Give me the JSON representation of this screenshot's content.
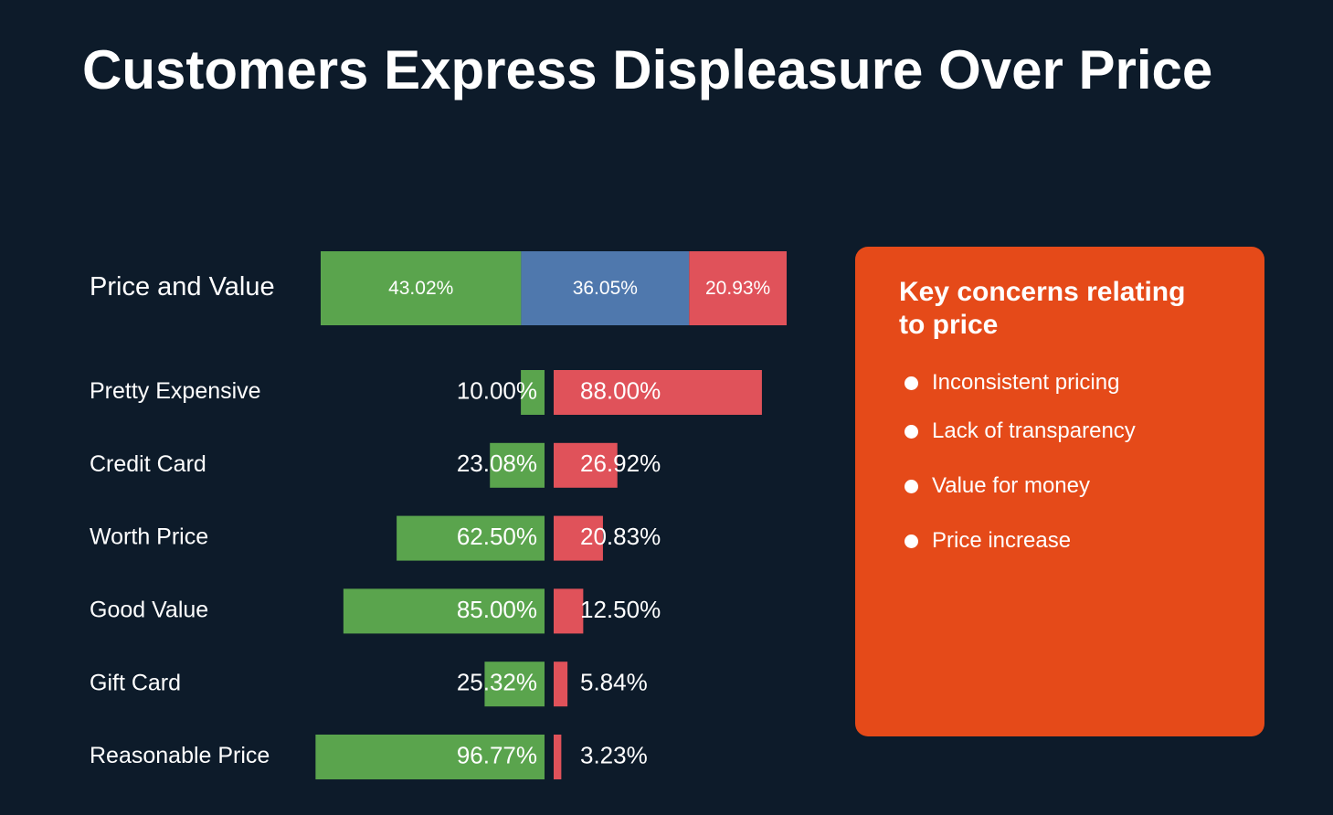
{
  "title": "Customers Express Displeasure Over Price",
  "colors": {
    "background": "#0d1b2a",
    "positive": "#5aa44d",
    "neutral": "#4f78ad",
    "negative": "#e0525a",
    "panel": "#e54a19",
    "text": "#ffffff"
  },
  "chart_data": {
    "type": "bar",
    "summary": {
      "category": "Price and Value",
      "segments": [
        {
          "value": 43.02,
          "label": "43.02%",
          "color": "#5aa44d"
        },
        {
          "value": 36.05,
          "label": "36.05%",
          "color": "#4f78ad"
        },
        {
          "value": 20.93,
          "label": "20.93%",
          "color": "#e0525a"
        }
      ]
    },
    "categories": [
      "Pretty Expensive",
      "Credit Card",
      "Worth Price",
      "Good Value",
      "Gift Card",
      "Reasonable Price"
    ],
    "series": [
      {
        "values": [
          10.0,
          23.08,
          62.5,
          85.0,
          25.32,
          96.77
        ],
        "labels": [
          "10.00%",
          "23.08%",
          "62.50%",
          "85.00%",
          "25.32%",
          "96.77%"
        ],
        "color": "#5aa44d"
      },
      {
        "values": [
          88.0,
          26.92,
          20.83,
          12.5,
          5.84,
          3.23
        ],
        "labels": [
          "88.00%",
          "26.92%",
          "20.83%",
          "12.50%",
          "5.84%",
          "3.23%"
        ],
        "color": "#e0525a"
      }
    ]
  },
  "panel": {
    "title": "Key concerns relating to price",
    "items": [
      "Inconsistent pricing",
      "Lack of transparency",
      "Value for money",
      "Price increase"
    ]
  }
}
